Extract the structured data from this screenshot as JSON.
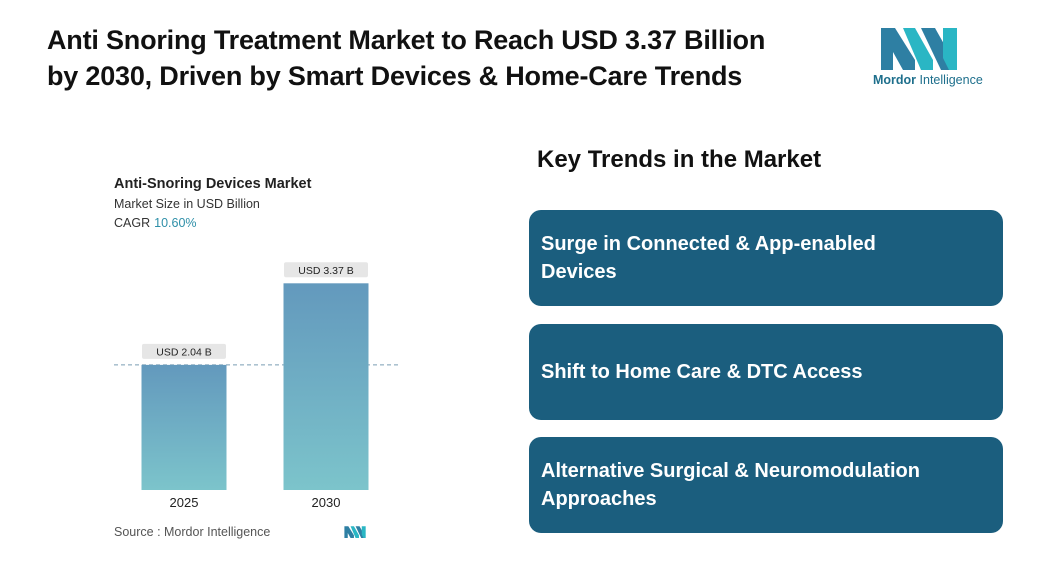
{
  "headline": {
    "line1": "Anti Snoring Treatment Market to Reach USD 3.37 Billion",
    "line2": "by 2030, Driven by Smart Devices & Home-Care Trends"
  },
  "logo": {
    "brand_bold": "Mordor",
    "brand_regular": " Intelligence",
    "icon": "mordor-intelligence-logo-icon"
  },
  "chart_data": {
    "type": "bar",
    "title": "Anti-Snoring Devices Market",
    "subtitle": "Market Size in USD Billion",
    "cagr_label": "CAGR",
    "cagr_value": "10.60%",
    "categories": [
      "2025",
      "2030"
    ],
    "values": [
      2.04,
      3.37
    ],
    "value_labels": [
      "USD 2.04 B",
      "USD 3.37 B"
    ],
    "ylim": [
      0,
      3.75
    ],
    "grid": false,
    "reference_line": "dashed line at 2025 value",
    "colors": {
      "bar_top": "#6399bd",
      "bar_bottom": "#7cc4cb",
      "label_bg": "#e6e6e6",
      "dash": "#7a9db3"
    }
  },
  "source": {
    "text": "Source :  Mordor Intelligence"
  },
  "trends": {
    "title": "Key Trends in the Market",
    "items": [
      {
        "line1": "Surge in Connected & App-enabled",
        "line2": "Devices"
      },
      {
        "line1": "Shift to Home Care & DTC Access",
        "line2": ""
      },
      {
        "line1": "Alternative Surgical & Neuromodulation",
        "line2": "Approaches"
      }
    ],
    "card_color": "#1b5e7e"
  }
}
